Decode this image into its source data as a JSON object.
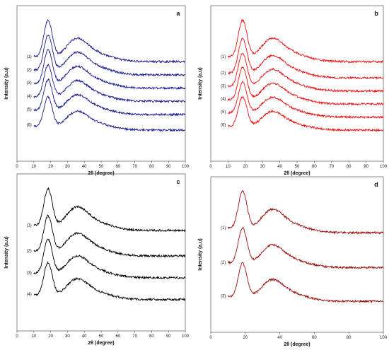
{
  "chart_data": [
    {
      "type": "line",
      "panel_label": "a",
      "xlabel": "2θ (degree)",
      "ylabel": "Intensity (a.u)",
      "xlim": [
        0,
        100
      ],
      "xticks": [
        "0",
        "10",
        "20",
        "30",
        "40",
        "50",
        "60",
        "70",
        "80",
        "90",
        "100"
      ],
      "grid": false,
      "color": "#1a1a8c",
      "x_start": 10,
      "series": [
        {
          "name": "(1)",
          "peak_x": 18,
          "baseline": 1.0
        },
        {
          "name": "(2)",
          "peak_x": 18,
          "baseline": 0.83
        },
        {
          "name": "(3)",
          "peak_x": 18,
          "baseline": 0.66
        },
        {
          "name": "(4)",
          "peak_x": 18,
          "baseline": 0.49
        },
        {
          "name": "(5)",
          "peak_x": 18,
          "baseline": 0.32
        },
        {
          "name": "(6)",
          "peak_x": 18,
          "baseline": 0.12
        }
      ]
    },
    {
      "type": "line",
      "panel_label": "b",
      "xlabel": "2θ (degree)",
      "ylabel": "Intensity (a.u)",
      "xlim": [
        0,
        100
      ],
      "xticks": [
        "0",
        "10",
        "20",
        "30",
        "40",
        "50",
        "60",
        "70",
        "80",
        "90",
        "100"
      ],
      "grid": false,
      "color": "#ee1111",
      "x_start": 10,
      "series": [
        {
          "name": "(1)",
          "peak_x": 18,
          "baseline": 1.0
        },
        {
          "name": "(2)",
          "peak_x": 18,
          "baseline": 0.8
        },
        {
          "name": "(3)",
          "peak_x": 18,
          "baseline": 0.64
        },
        {
          "name": "(4)",
          "peak_x": 18,
          "baseline": 0.48
        },
        {
          "name": "(5)",
          "peak_x": 18,
          "baseline": 0.32
        },
        {
          "name": "(6)",
          "peak_x": 18,
          "baseline": 0.16
        }
      ]
    },
    {
      "type": "line",
      "panel_label": "c",
      "xlabel": "2θ (degree)",
      "ylabel": "Intensity (a.u)",
      "xlim": [
        0,
        100
      ],
      "xticks": [
        "0",
        "10",
        "20",
        "30",
        "40",
        "50",
        "60",
        "70",
        "80",
        "90",
        "100"
      ],
      "grid": false,
      "color": "#000000",
      "x_start": 10,
      "series": [
        {
          "name": "(1)",
          "peak_x": 18,
          "baseline": 1.0
        },
        {
          "name": "(2)",
          "peak_x": 18,
          "baseline": 0.72
        },
        {
          "name": "(3)",
          "peak_x": 18,
          "baseline": 0.48
        },
        {
          "name": "(4)",
          "peak_x": 18,
          "baseline": 0.24
        }
      ]
    },
    {
      "type": "line",
      "panel_label": "d",
      "xlabel": "2θ (degree)",
      "ylabel": "Intensity (a.u)",
      "xlim": [
        0,
        100
      ],
      "xticks": [
        "0",
        "20",
        "40",
        "60",
        "80",
        "100"
      ],
      "grid": false,
      "color": "#9a0d0d",
      "x_start": 10,
      "series": [
        {
          "name": "(1)",
          "peak_x": 18,
          "baseline": 1.0
        },
        {
          "name": "(2)",
          "peak_x": 18,
          "baseline": 0.66
        },
        {
          "name": "(3)",
          "peak_x": 18,
          "baseline": 0.33
        }
      ]
    }
  ]
}
